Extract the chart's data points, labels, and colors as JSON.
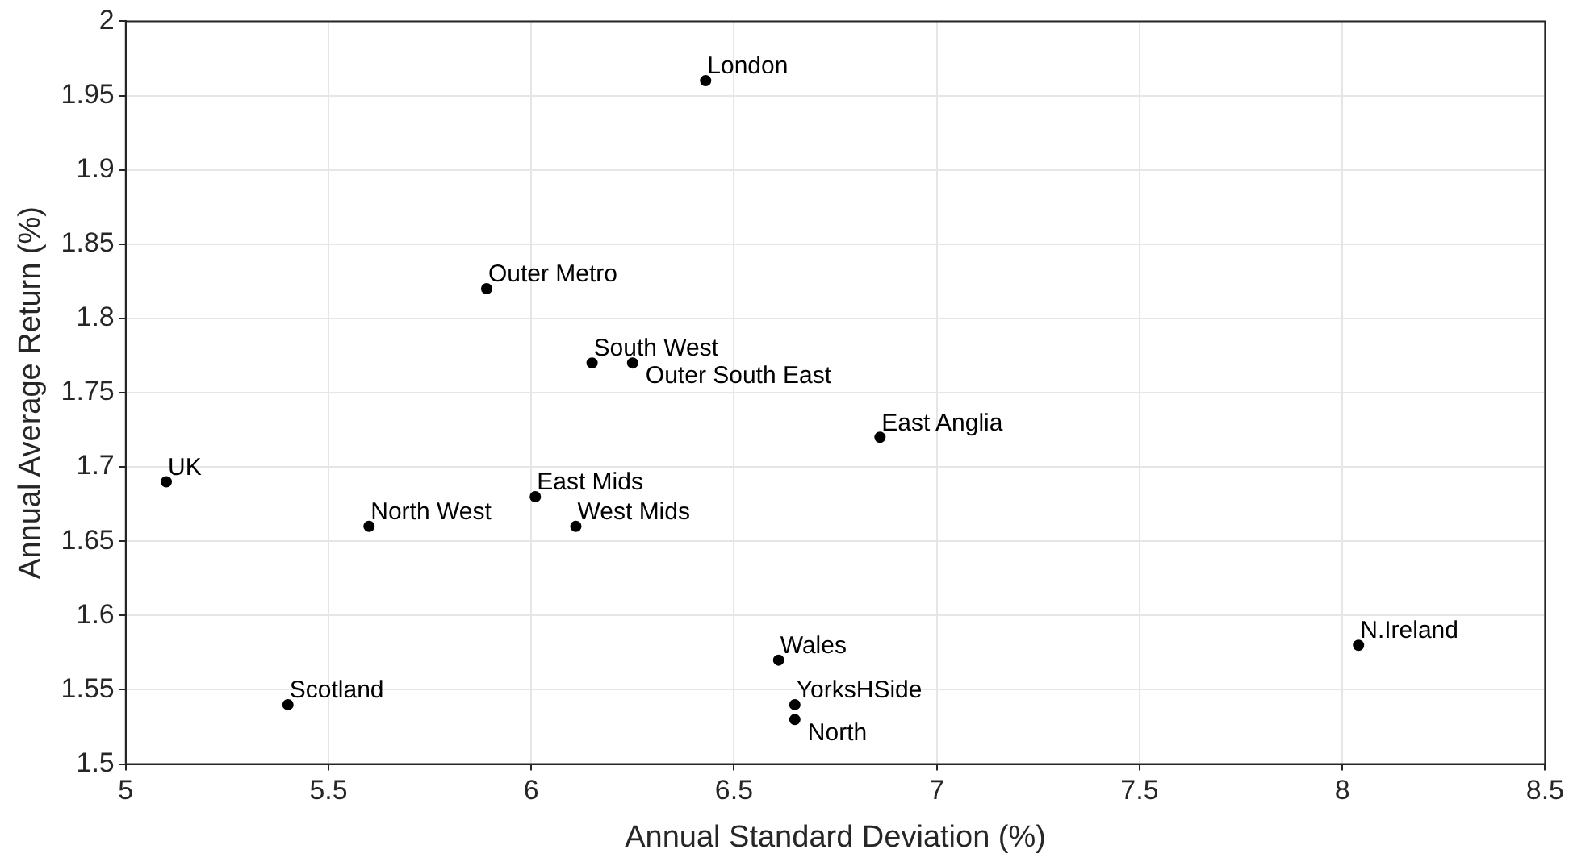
{
  "chart_data": {
    "type": "scatter",
    "xlabel": "Annual Standard Deviation (%)",
    "ylabel": "Annual Average Return (%)",
    "x": [
      6.43,
      5.89,
      6.15,
      6.25,
      6.86,
      5.1,
      6.01,
      5.6,
      6.11,
      8.04,
      6.61,
      5.4,
      6.65,
      6.65
    ],
    "values": [
      1.96,
      1.82,
      1.77,
      1.77,
      1.72,
      1.69,
      1.68,
      1.66,
      1.66,
      1.58,
      1.57,
      1.54,
      1.54,
      1.53
    ],
    "color": "#000000",
    "marker": "circle",
    "grid": true,
    "xlim": [
      5,
      8.5
    ],
    "xticks": [
      5,
      5.5,
      6,
      6.5,
      7,
      7.5,
      8,
      8.5
    ],
    "ylim": [
      1.5,
      2
    ],
    "yticks": [
      1.5,
      1.55,
      1.6,
      1.65,
      1.7,
      1.75,
      1.8,
      1.85,
      1.9,
      1.95,
      2
    ],
    "annotations": [
      {
        "text": "London",
        "x": 6.43,
        "y": 1.96
      },
      {
        "text": "Outer Metro",
        "x": 5.89,
        "y": 1.82
      },
      {
        "text": "South West",
        "x": 6.15,
        "y": 1.77
      },
      {
        "text": "Outer South East",
        "x": 6.25,
        "y": 1.77
      },
      {
        "text": "East Anglia",
        "x": 6.86,
        "y": 1.72
      },
      {
        "text": "UK",
        "x": 5.1,
        "y": 1.69
      },
      {
        "text": "East Mids",
        "x": 6.01,
        "y": 1.68
      },
      {
        "text": "North West",
        "x": 5.6,
        "y": 1.66
      },
      {
        "text": "West Mids",
        "x": 6.11,
        "y": 1.66
      },
      {
        "text": "N.Ireland",
        "x": 8.04,
        "y": 1.58
      },
      {
        "text": "Wales",
        "x": 6.61,
        "y": 1.57
      },
      {
        "text": "Scotland",
        "x": 5.4,
        "y": 1.54
      },
      {
        "text": "YorksHSide",
        "x": 6.65,
        "y": 1.54
      },
      {
        "text": "North",
        "x": 6.65,
        "y": 1.53
      }
    ]
  }
}
